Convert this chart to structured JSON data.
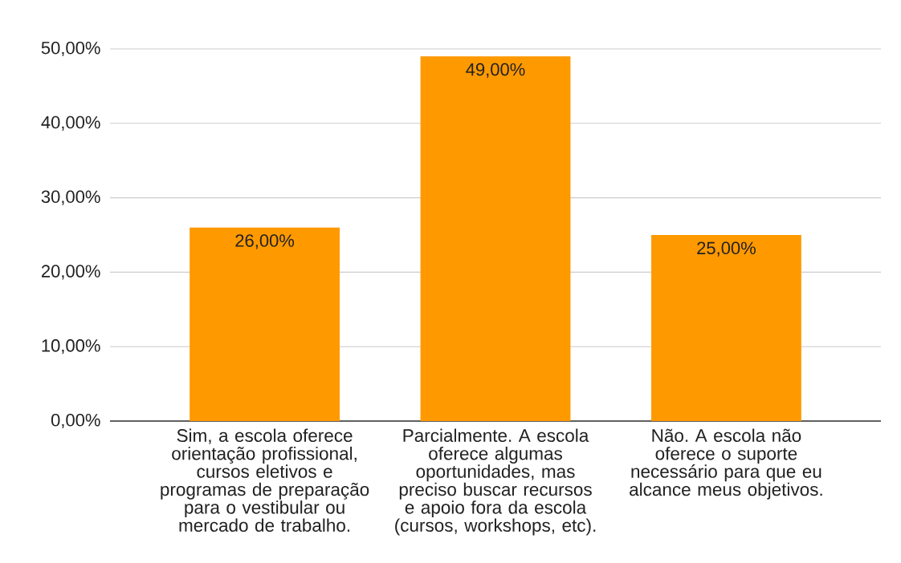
{
  "chart_data": {
    "type": "bar",
    "categories": [
      "Sim, a escola oferece orientação profissional, cursos eletivos e programas de preparação para o vestibular ou mercado de trabalho.",
      "Parcialmente. A escola oferece algumas oportunidades, mas preciso buscar recursos e apoio fora da escola (cursos, workshops, etc).",
      "Não. A escola não oferece o suporte necessário para que eu alcance meus objetivos."
    ],
    "values": [
      26,
      49,
      25
    ],
    "value_labels": [
      "26,00%",
      "49,00%",
      "25,00%"
    ],
    "color": "#ff9900",
    "ylim": [
      0,
      50
    ],
    "yticks": [
      {
        "value": 0,
        "label": "0,00%"
      },
      {
        "value": 10,
        "label": "10,00%"
      },
      {
        "value": 20,
        "label": "20,00%"
      },
      {
        "value": 30,
        "label": "30,00%"
      },
      {
        "value": 40,
        "label": "40,00%"
      },
      {
        "value": 50,
        "label": "50,00%"
      }
    ],
    "grid": "y"
  }
}
